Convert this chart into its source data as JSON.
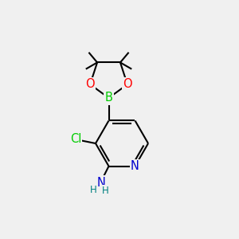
{
  "background_color": "#f0f0f0",
  "atom_colors": {
    "C": "#000000",
    "N": "#0000cd",
    "O": "#ff0000",
    "B": "#00cc00",
    "Cl": "#00cc00",
    "H": "#008080"
  },
  "bond_color": "#000000",
  "bond_width": 1.5,
  "font_size_atom": 10.5,
  "font_size_small": 8.5
}
